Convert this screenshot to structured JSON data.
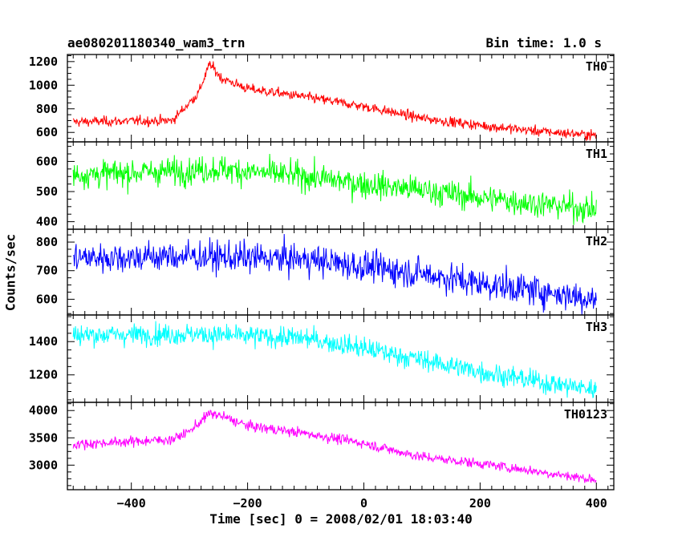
{
  "chart_data": {
    "type": "line",
    "title": "ae080201180340_wam3_trn",
    "bin_time": "Bin time: 1.0 s",
    "xlabel": "Time [sec] 0 = 2008/02/01 18:03:40",
    "ylabel": "Counts/sec",
    "xlim": [
      -510,
      430
    ],
    "x_ticks": [
      -400,
      -200,
      0,
      200,
      400
    ],
    "x_range_data": [
      -500,
      400
    ],
    "grid": false,
    "panels": [
      {
        "name": "TH0",
        "color": "#ff0000",
        "ylim": [
          520,
          1260
        ],
        "y_ticks": [
          600,
          800,
          1000,
          1200
        ],
        "noise": 30,
        "trend": [
          [
            -500,
            690
          ],
          [
            -330,
            700
          ],
          [
            -310,
            800
          ],
          [
            -285,
            930
          ],
          [
            -265,
            1180
          ],
          [
            -255,
            1120
          ],
          [
            -245,
            1060
          ],
          [
            -200,
            970
          ],
          [
            -100,
            900
          ],
          [
            0,
            820
          ],
          [
            100,
            720
          ],
          [
            200,
            660
          ],
          [
            300,
            610
          ],
          [
            400,
            575
          ]
        ]
      },
      {
        "name": "TH1",
        "color": "#00ff00",
        "ylim": [
          375,
          665
        ],
        "y_ticks": [
          400,
          500,
          600
        ],
        "noise": 32,
        "trend": [
          [
            -500,
            555
          ],
          [
            -300,
            570
          ],
          [
            -250,
            575
          ],
          [
            -100,
            550
          ],
          [
            0,
            525
          ],
          [
            100,
            505
          ],
          [
            200,
            480
          ],
          [
            300,
            460
          ],
          [
            400,
            440
          ]
        ]
      },
      {
        "name": "TH2",
        "color": "#0000ff",
        "ylim": [
          545,
          845
        ],
        "y_ticks": [
          600,
          700,
          800
        ],
        "noise": 38,
        "trend": [
          [
            -500,
            745
          ],
          [
            -300,
            750
          ],
          [
            -100,
            740
          ],
          [
            0,
            715
          ],
          [
            100,
            690
          ],
          [
            200,
            655
          ],
          [
            300,
            630
          ],
          [
            400,
            600
          ]
        ]
      },
      {
        "name": "TH3",
        "color": "#00ffff",
        "ylim": [
          1035,
          1560
        ],
        "y_ticks": [
          1200,
          1400
        ],
        "noise": 45,
        "trend": [
          [
            -500,
            1440
          ],
          [
            -300,
            1445
          ],
          [
            -100,
            1420
          ],
          [
            0,
            1360
          ],
          [
            100,
            1290
          ],
          [
            200,
            1220
          ],
          [
            300,
            1160
          ],
          [
            400,
            1110
          ]
        ]
      },
      {
        "name": "TH0123",
        "color": "#ff00ff",
        "ylim": [
          2550,
          4150
        ],
        "y_ticks": [
          3000,
          3500,
          4000
        ],
        "noise": 65,
        "trend": [
          [
            -500,
            3380
          ],
          [
            -330,
            3470
          ],
          [
            -300,
            3620
          ],
          [
            -265,
            3950
          ],
          [
            -240,
            3880
          ],
          [
            -200,
            3720
          ],
          [
            -100,
            3580
          ],
          [
            0,
            3400
          ],
          [
            50,
            3270
          ],
          [
            100,
            3150
          ],
          [
            200,
            3030
          ],
          [
            300,
            2880
          ],
          [
            400,
            2730
          ]
        ]
      }
    ]
  }
}
